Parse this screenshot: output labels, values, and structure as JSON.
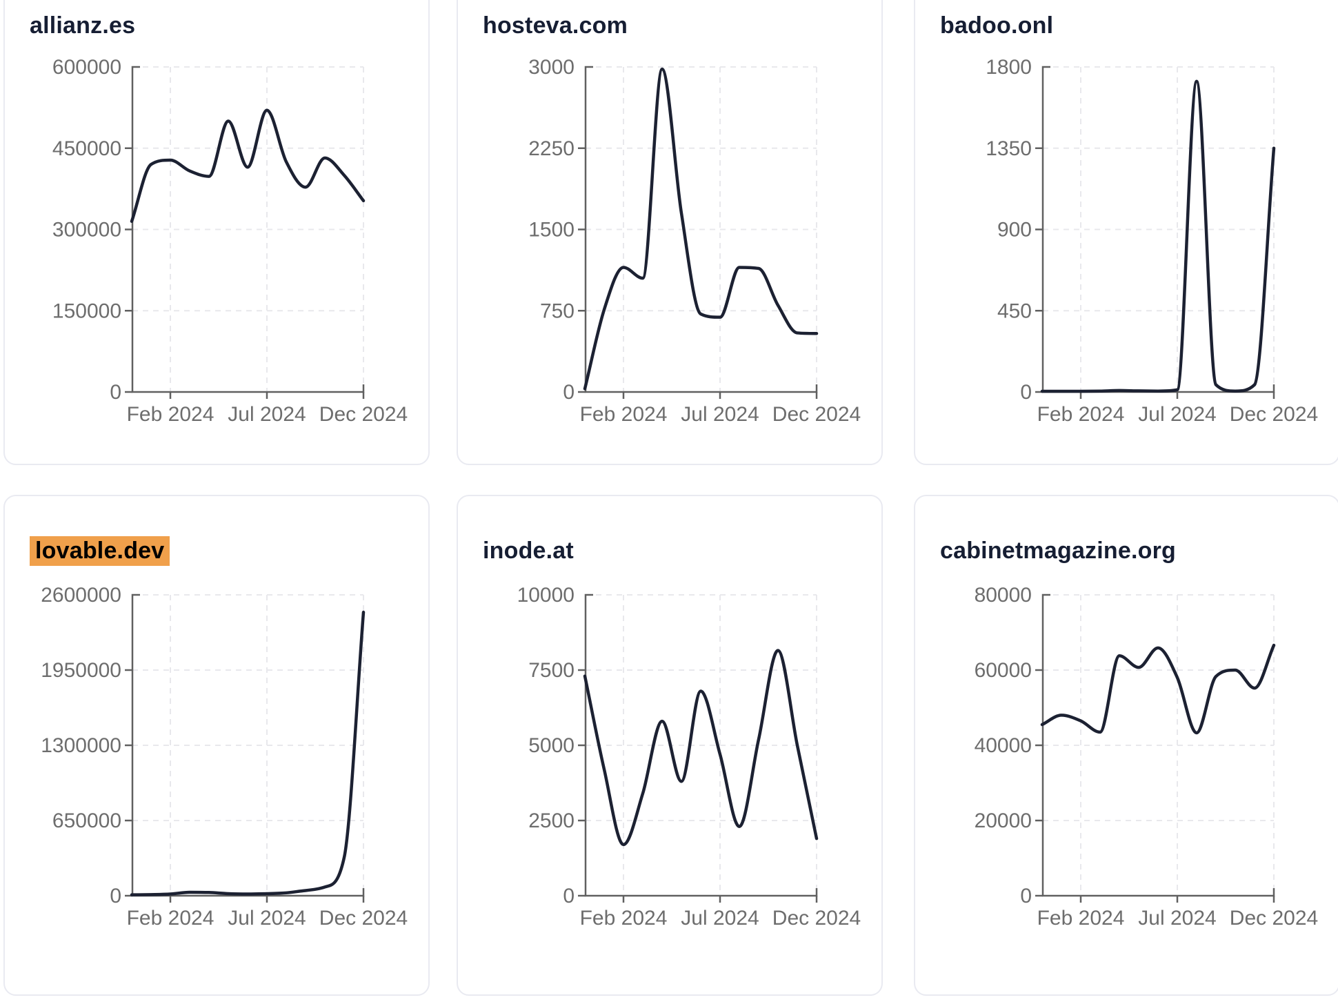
{
  "page": {
    "background": "#ffffff"
  },
  "style": {
    "line_color": "#1c2132",
    "highlight_color": "#f0a04b",
    "title_color": "#161e33",
    "tick_label_color": "#6d6d6d",
    "axis_color": "#606060",
    "grid_color": "#e8e8ec",
    "card_border_color": "#e9eaf1"
  },
  "chart_data": [
    {
      "type": "line",
      "title": "allianz.es",
      "highlighted": false,
      "ylim": [
        0,
        600000
      ],
      "y_ticks": [
        0,
        150000,
        300000,
        450000,
        600000
      ],
      "x_tick_labels": [
        "Feb 2024",
        "Jul 2024",
        "Dec 2024"
      ],
      "x": [
        "2023-12",
        "2024-01",
        "2024-02",
        "2024-03",
        "2024-04",
        "2024-05",
        "2024-06",
        "2024-07",
        "2024-08",
        "2024-09",
        "2024-10",
        "2024-11",
        "2024-12"
      ],
      "values": [
        315000,
        420000,
        428000,
        408000,
        398000,
        500000,
        415000,
        520000,
        425000,
        378000,
        432000,
        400000,
        353000
      ],
      "grid": true,
      "legend": false
    },
    {
      "type": "line",
      "title": "hosteva.com",
      "highlighted": false,
      "ylim": [
        0,
        3000
      ],
      "y_ticks": [
        0,
        750,
        1500,
        2250,
        3000
      ],
      "x_tick_labels": [
        "Feb 2024",
        "Jul 2024",
        "Dec 2024"
      ],
      "x": [
        "2023-12",
        "2024-01",
        "2024-02",
        "2024-03",
        "2024-04",
        "2024-05",
        "2024-06",
        "2024-07",
        "2024-08",
        "2024-09",
        "2024-10",
        "2024-11",
        "2024-12"
      ],
      "values": [
        30,
        760,
        1150,
        1050,
        2980,
        1650,
        720,
        690,
        1150,
        1140,
        800,
        545,
        540
      ],
      "grid": true,
      "legend": false
    },
    {
      "type": "line",
      "title": "badoo.onl",
      "highlighted": false,
      "ylim": [
        0,
        1800
      ],
      "y_ticks": [
        0,
        450,
        900,
        1350,
        1800
      ],
      "x_tick_labels": [
        "Feb 2024",
        "Jul 2024",
        "Dec 2024"
      ],
      "x": [
        "2023-12",
        "2024-01",
        "2024-02",
        "2024-03",
        "2024-04",
        "2024-05",
        "2024-06",
        "2024-07",
        "2024-08",
        "2024-09",
        "2024-10",
        "2024-11",
        "2024-12"
      ],
      "values": [
        4,
        4,
        4,
        5,
        8,
        6,
        5,
        12,
        1720,
        40,
        5,
        40,
        1350
      ],
      "grid": true,
      "legend": false
    },
    {
      "type": "line",
      "title": "lovable.dev",
      "highlighted": true,
      "ylim": [
        0,
        2600000
      ],
      "y_ticks": [
        0,
        650000,
        1300000,
        1950000,
        2600000
      ],
      "x_tick_labels": [
        "Feb 2024",
        "Jul 2024",
        "Dec 2024"
      ],
      "x": [
        "2023-12",
        "2024-01",
        "2024-02",
        "2024-03",
        "2024-04",
        "2024-05",
        "2024-06",
        "2024-07",
        "2024-08",
        "2024-09",
        "2024-10",
        "2024-11",
        "2024-12"
      ],
      "values": [
        8000,
        10000,
        15000,
        30000,
        28000,
        18000,
        15000,
        18000,
        25000,
        45000,
        75000,
        330000,
        2450000
      ],
      "grid": true,
      "legend": false
    },
    {
      "type": "line",
      "title": "inode.at",
      "highlighted": false,
      "ylim": [
        0,
        10000
      ],
      "y_ticks": [
        0,
        2500,
        5000,
        7500,
        10000
      ],
      "x_tick_labels": [
        "Feb 2024",
        "Jul 2024",
        "Dec 2024"
      ],
      "x": [
        "2023-12",
        "2024-01",
        "2024-02",
        "2024-03",
        "2024-04",
        "2024-05",
        "2024-06",
        "2024-07",
        "2024-08",
        "2024-09",
        "2024-10",
        "2024-11",
        "2024-12"
      ],
      "values": [
        7300,
        4200,
        1700,
        3400,
        5800,
        3800,
        6800,
        4700,
        2300,
        5200,
        8150,
        5000,
        1900
      ],
      "grid": true,
      "legend": false
    },
    {
      "type": "line",
      "title": "cabinetmagazine.org",
      "highlighted": false,
      "ylim": [
        0,
        80000
      ],
      "y_ticks": [
        0,
        20000,
        40000,
        60000,
        80000
      ],
      "x_tick_labels": [
        "Feb 2024",
        "Jul 2024",
        "Dec 2024"
      ],
      "x": [
        "2023-12",
        "2024-01",
        "2024-02",
        "2024-03",
        "2024-04",
        "2024-05",
        "2024-06",
        "2024-07",
        "2024-08",
        "2024-09",
        "2024-10",
        "2024-11",
        "2024-12"
      ],
      "values": [
        45500,
        48000,
        46500,
        43500,
        63800,
        60700,
        65900,
        58000,
        43300,
        58300,
        60000,
        55200,
        66600
      ],
      "grid": true,
      "legend": false
    }
  ]
}
